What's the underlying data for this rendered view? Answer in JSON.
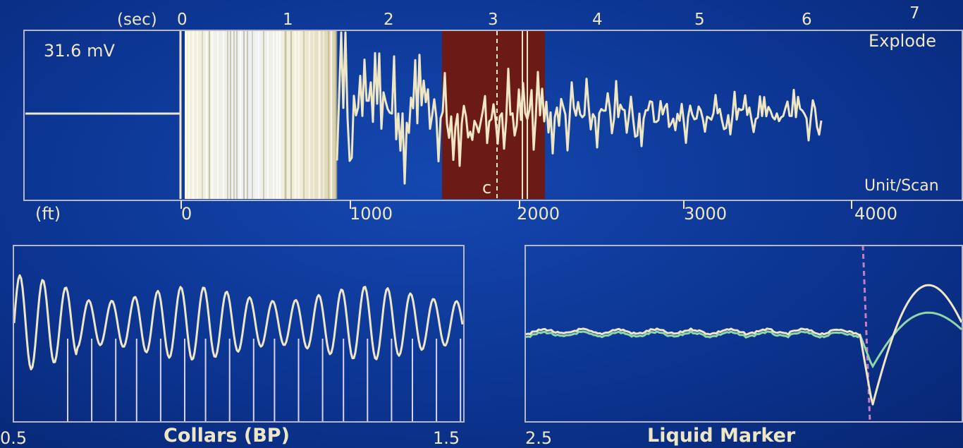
{
  "main_panel": {
    "voltage_readout": "31.6 mV",
    "mode_label": "Explode",
    "unit_label": "Unit/Scan",
    "marker_label": "c"
  },
  "time_axis": {
    "unit": "(sec)",
    "ticks": [
      "0",
      "1",
      "2",
      "3",
      "4",
      "5",
      "6",
      "7"
    ]
  },
  "depth_axis": {
    "unit": "(ft)",
    "ticks": [
      "0",
      "1000",
      "2000",
      "3000",
      "4000"
    ]
  },
  "collars_panel": {
    "title": "Collars (BP)",
    "range_start": "0.5",
    "range_end": "1.5"
  },
  "liquid_panel": {
    "title": "Liquid Marker",
    "range_start": "2.5"
  },
  "colors": {
    "background": "#0c3592",
    "trace": "#efe6c4",
    "highlight_band": "#6b1a16",
    "panel_border": "#b6b6c4",
    "secondary_trace": "#8fd6a8"
  }
}
